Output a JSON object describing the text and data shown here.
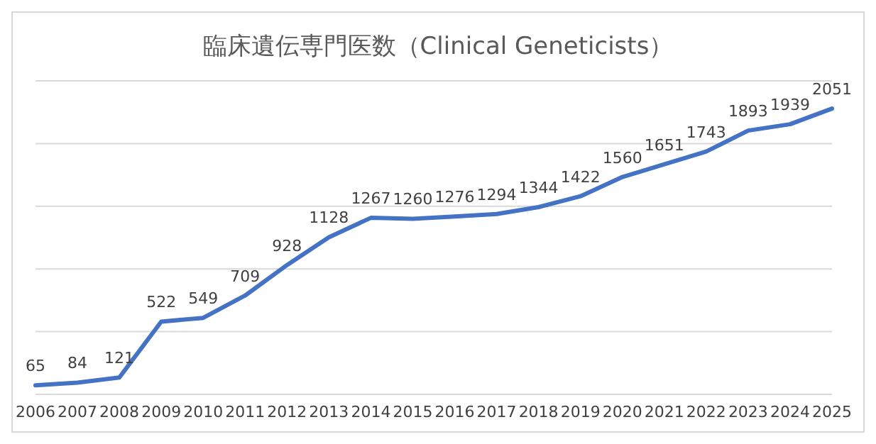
{
  "chart_data": {
    "type": "line",
    "title": "臨床遺伝専門医数（Clinical Geneticists）",
    "categories": [
      "2006",
      "2007",
      "2008",
      "2009",
      "2010",
      "2011",
      "2012",
      "2013",
      "2014",
      "2015",
      "2016",
      "2017",
      "2018",
      "2019",
      "2020",
      "2021",
      "2022",
      "2023",
      "2024",
      "2025"
    ],
    "series": [
      {
        "color": "#4472c4",
        "values": [
          65,
          84,
          121,
          522,
          549,
          709,
          928,
          1128,
          1267,
          1260,
          1276,
          1294,
          1344,
          1422,
          1560,
          1651,
          1743,
          1893,
          1939,
          2051
        ]
      }
    ],
    "tick_labels": "x",
    "grid": "y",
    "data_labels": true,
    "legend": false,
    "marker": "none",
    "line_style": "solid"
  }
}
